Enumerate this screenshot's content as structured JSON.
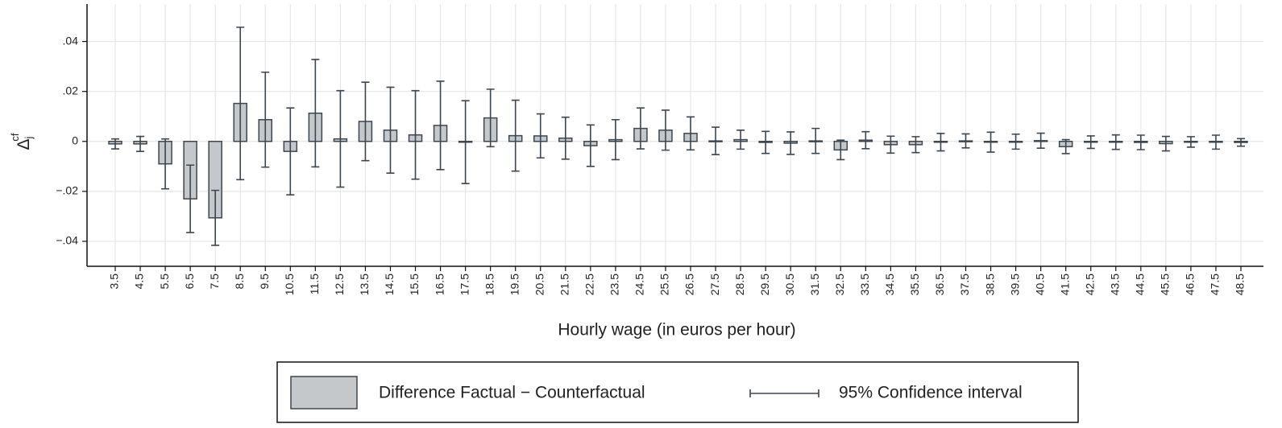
{
  "chart_data": {
    "type": "bar",
    "xlabel": "Hourly wage (in euros per hour)",
    "ylabel": "Δ",
    "ylabel_sub": "j",
    "ylabel_sup": "cf",
    "categories": [
      "3.5",
      "4.5",
      "5.5",
      "6.5",
      "7.5",
      "8.5",
      "9.5",
      "10.5",
      "11.5",
      "12.5",
      "13.5",
      "14.5",
      "15.5",
      "16.5",
      "17.5",
      "18.5",
      "19.5",
      "20.5",
      "21.5",
      "22.5",
      "23.5",
      "24.5",
      "25.5",
      "26.5",
      "27.5",
      "28.5",
      "29.5",
      "30.5",
      "31.5",
      "32.5",
      "33.5",
      "34.5",
      "35.5",
      "36.5",
      "37.5",
      "38.5",
      "39.5",
      "40.5",
      "41.5",
      "42.5",
      "43.5",
      "44.5",
      "45.5",
      "46.5",
      "47.5",
      "48.5"
    ],
    "series": [
      {
        "name": "Difference Factual − Counterfactual",
        "color": "#c5c8cb",
        "edge_color": "#3b4651",
        "values": [
          -0.001,
          -0.001,
          -0.009,
          -0.023,
          -0.0306,
          0.0152,
          0.0087,
          -0.004,
          0.0113,
          0.001,
          0.008,
          0.0045,
          0.0026,
          0.0064,
          -0.0003,
          0.0094,
          0.0023,
          0.0022,
          0.0013,
          -0.0017,
          0.0007,
          0.0052,
          0.0045,
          0.0032,
          0.0002,
          0.0007,
          -0.0004,
          -0.0007,
          0.0002,
          -0.0034,
          0.0005,
          -0.0013,
          -0.0013,
          -0.0003,
          0.0002,
          -0.0003,
          -0.0001,
          0.0003,
          -0.0021,
          -0.0003,
          -0.0003,
          -0.0004,
          -0.0009,
          -0.0002,
          -0.0003,
          -0.0004
        ],
        "errors": [
          0.002,
          0.003,
          0.01,
          0.0135,
          0.011,
          0.0305,
          0.019,
          0.0174,
          0.0215,
          0.0193,
          0.0157,
          0.0172,
          0.0177,
          0.0177,
          0.0166,
          0.0115,
          0.0142,
          0.0088,
          0.0084,
          0.0083,
          0.008,
          0.0082,
          0.008,
          0.0066,
          0.0055,
          0.0038,
          0.0044,
          0.0045,
          0.005,
          0.0039,
          0.0034,
          0.0034,
          0.0032,
          0.0035,
          0.0028,
          0.004,
          0.003,
          0.003,
          0.0028,
          0.0025,
          0.0029,
          0.0029,
          0.0029,
          0.0021,
          0.0028,
          0.0015
        ]
      }
    ],
    "ci_name": "95% Confidence interval",
    "ci_color": "#3b4651",
    "ylim": [
      -0.05,
      0.055
    ],
    "yticks": [
      {
        "value": -0.04,
        "label": "−.04"
      },
      {
        "value": -0.02,
        "label": "−.02"
      },
      0,
      {
        "value": 0.02,
        "label": ".02"
      },
      {
        "value": 0.04,
        "label": ".04"
      }
    ],
    "grid": true
  }
}
